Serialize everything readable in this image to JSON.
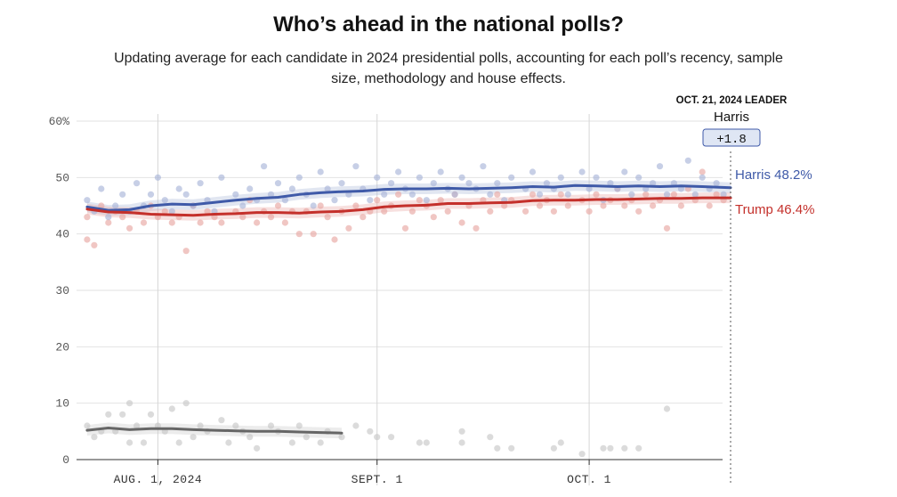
{
  "header": {
    "title": "Who’s ahead in the national polls?",
    "subtitle": "Updating average for each candidate in 2024 presidential polls, accounting for each poll’s recency, sample size, methodology and house effects."
  },
  "leader": {
    "caption": "OCT. 21, 2024 LEADER",
    "name": "Harris",
    "margin": "+1.8"
  },
  "end_labels": {
    "harris": "Harris 48.2%",
    "trump": "Trump 46.4%"
  },
  "colors": {
    "harris": "#3f5aa8",
    "trump": "#c4302b",
    "other": "#666666",
    "harris_dot": "#a9b6d8",
    "trump_dot": "#e8a7a3",
    "other_dot": "#c8c8c8",
    "leader_box": "#dfe6f4"
  },
  "chart_data": {
    "type": "line",
    "title": "",
    "xlabel": "",
    "ylabel": "",
    "ylim": [
      0,
      60
    ],
    "yticks": [
      0,
      10,
      20,
      30,
      40,
      50,
      60
    ],
    "ytick_labels": [
      "0",
      "10",
      "20",
      "30",
      "40",
      "50",
      "60%"
    ],
    "xlim": [
      "2024-07-21",
      "2024-10-21"
    ],
    "xticks": [
      {
        "date": "2024-08-01",
        "label": "AUG. 1, 2024"
      },
      {
        "date": "2024-09-01",
        "label": "SEPT. 1"
      },
      {
        "date": "2024-10-01",
        "label": "OCT. 1"
      }
    ],
    "grid": "vertical at x ticks, horizontal at y ticks",
    "series": [
      {
        "name": "Harris",
        "key": "harris",
        "x": [
          "2024-07-22",
          "2024-07-25",
          "2024-07-28",
          "2024-07-31",
          "2024-08-03",
          "2024-08-06",
          "2024-08-09",
          "2024-08-12",
          "2024-08-15",
          "2024-08-18",
          "2024-08-21",
          "2024-08-24",
          "2024-08-27",
          "2024-08-30",
          "2024-09-02",
          "2024-09-05",
          "2024-09-08",
          "2024-09-11",
          "2024-09-14",
          "2024-09-17",
          "2024-09-20",
          "2024-09-23",
          "2024-09-26",
          "2024-09-29",
          "2024-10-02",
          "2024-10-05",
          "2024-10-08",
          "2024-10-11",
          "2024-10-14",
          "2024-10-17",
          "2024-10-21"
        ],
        "values": [
          44.8,
          44.2,
          44.3,
          45.0,
          45.3,
          45.2,
          45.6,
          46.0,
          46.3,
          46.5,
          47.0,
          47.3,
          47.5,
          47.6,
          47.9,
          48.0,
          48.0,
          48.1,
          48.0,
          48.1,
          48.2,
          48.4,
          48.3,
          48.6,
          48.5,
          48.4,
          48.5,
          48.4,
          48.5,
          48.4,
          48.2
        ]
      },
      {
        "name": "Trump",
        "key": "trump",
        "x": [
          "2024-07-22",
          "2024-07-25",
          "2024-07-28",
          "2024-07-31",
          "2024-08-03",
          "2024-08-06",
          "2024-08-09",
          "2024-08-12",
          "2024-08-15",
          "2024-08-18",
          "2024-08-21",
          "2024-08-24",
          "2024-08-27",
          "2024-08-30",
          "2024-09-02",
          "2024-09-05",
          "2024-09-08",
          "2024-09-11",
          "2024-09-14",
          "2024-09-17",
          "2024-09-20",
          "2024-09-23",
          "2024-09-26",
          "2024-09-29",
          "2024-10-02",
          "2024-10-05",
          "2024-10-08",
          "2024-10-11",
          "2024-10-14",
          "2024-10-17",
          "2024-10-21"
        ],
        "values": [
          44.4,
          43.9,
          43.8,
          43.5,
          43.4,
          43.3,
          43.5,
          43.6,
          43.8,
          43.8,
          43.7,
          43.9,
          44.0,
          44.3,
          44.8,
          45.0,
          45.1,
          45.4,
          45.4,
          45.5,
          45.6,
          45.9,
          46.0,
          46.0,
          46.1,
          46.1,
          46.2,
          46.3,
          46.3,
          46.4,
          46.4
        ]
      },
      {
        "name": "",
        "key": "other",
        "x": [
          "2024-07-22",
          "2024-07-25",
          "2024-07-28",
          "2024-07-31",
          "2024-08-03",
          "2024-08-06",
          "2024-08-09",
          "2024-08-12",
          "2024-08-15",
          "2024-08-18",
          "2024-08-21",
          "2024-08-24",
          "2024-08-27"
        ],
        "values": [
          5.2,
          5.6,
          5.3,
          5.5,
          5.5,
          5.3,
          5.2,
          5.1,
          5.0,
          5.0,
          4.9,
          4.8,
          4.7
        ]
      }
    ],
    "polls": {
      "harris": [
        [
          "2024-07-22",
          46
        ],
        [
          "2024-07-23",
          44
        ],
        [
          "2024-07-24",
          48
        ],
        [
          "2024-07-25",
          43
        ],
        [
          "2024-07-26",
          45
        ],
        [
          "2024-07-27",
          47
        ],
        [
          "2024-07-28",
          44
        ],
        [
          "2024-07-29",
          49
        ],
        [
          "2024-07-30",
          45
        ],
        [
          "2024-07-31",
          47
        ],
        [
          "2024-08-01",
          50
        ],
        [
          "2024-08-02",
          46
        ],
        [
          "2024-08-03",
          44
        ],
        [
          "2024-08-04",
          48
        ],
        [
          "2024-08-05",
          47
        ],
        [
          "2024-08-06",
          45
        ],
        [
          "2024-08-07",
          49
        ],
        [
          "2024-08-08",
          46
        ],
        [
          "2024-08-09",
          44
        ],
        [
          "2024-08-10",
          50
        ],
        [
          "2024-08-12",
          47
        ],
        [
          "2024-08-13",
          45
        ],
        [
          "2024-08-14",
          48
        ],
        [
          "2024-08-15",
          46
        ],
        [
          "2024-08-16",
          52
        ],
        [
          "2024-08-17",
          47
        ],
        [
          "2024-08-18",
          49
        ],
        [
          "2024-08-19",
          46
        ],
        [
          "2024-08-20",
          48
        ],
        [
          "2024-08-21",
          50
        ],
        [
          "2024-08-22",
          47
        ],
        [
          "2024-08-23",
          45
        ],
        [
          "2024-08-24",
          51
        ],
        [
          "2024-08-25",
          48
        ],
        [
          "2024-08-26",
          46
        ],
        [
          "2024-08-27",
          49
        ],
        [
          "2024-08-28",
          47
        ],
        [
          "2024-08-29",
          52
        ],
        [
          "2024-08-30",
          48
        ],
        [
          "2024-08-31",
          46
        ],
        [
          "2024-09-01",
          50
        ],
        [
          "2024-09-02",
          47
        ],
        [
          "2024-09-03",
          49
        ],
        [
          "2024-09-04",
          51
        ],
        [
          "2024-09-05",
          48
        ],
        [
          "2024-09-06",
          47
        ],
        [
          "2024-09-07",
          50
        ],
        [
          "2024-09-08",
          46
        ],
        [
          "2024-09-09",
          49
        ],
        [
          "2024-09-10",
          51
        ],
        [
          "2024-09-11",
          48
        ],
        [
          "2024-09-12",
          47
        ],
        [
          "2024-09-13",
          50
        ],
        [
          "2024-09-14",
          49
        ],
        [
          "2024-09-15",
          48
        ],
        [
          "2024-09-16",
          52
        ],
        [
          "2024-09-17",
          47
        ],
        [
          "2024-09-18",
          49
        ],
        [
          "2024-09-19",
          46
        ],
        [
          "2024-09-20",
          50
        ],
        [
          "2024-09-22",
          48
        ],
        [
          "2024-09-23",
          51
        ],
        [
          "2024-09-24",
          47
        ],
        [
          "2024-09-25",
          49
        ],
        [
          "2024-09-26",
          48
        ],
        [
          "2024-09-27",
          50
        ],
        [
          "2024-09-28",
          47
        ],
        [
          "2024-09-30",
          51
        ],
        [
          "2024-10-01",
          48
        ],
        [
          "2024-10-02",
          50
        ],
        [
          "2024-10-03",
          46
        ],
        [
          "2024-10-04",
          49
        ],
        [
          "2024-10-05",
          48
        ],
        [
          "2024-10-06",
          51
        ],
        [
          "2024-10-07",
          47
        ],
        [
          "2024-10-08",
          50
        ],
        [
          "2024-10-09",
          48
        ],
        [
          "2024-10-10",
          49
        ],
        [
          "2024-10-11",
          52
        ],
        [
          "2024-10-12",
          47
        ],
        [
          "2024-10-13",
          49
        ],
        [
          "2024-10-14",
          48
        ],
        [
          "2024-10-15",
          53
        ],
        [
          "2024-10-16",
          47
        ],
        [
          "2024-10-17",
          50
        ],
        [
          "2024-10-18",
          48
        ],
        [
          "2024-10-19",
          49
        ],
        [
          "2024-10-20",
          47
        ]
      ],
      "trump": [
        [
          "2024-07-22",
          43
        ],
        [
          "2024-07-22",
          39
        ],
        [
          "2024-07-23",
          38
        ],
        [
          "2024-07-24",
          45
        ],
        [
          "2024-07-25",
          42
        ],
        [
          "2024-07-26",
          44
        ],
        [
          "2024-07-27",
          43
        ],
        [
          "2024-07-28",
          41
        ],
        [
          "2024-07-29",
          44
        ],
        [
          "2024-07-30",
          42
        ],
        [
          "2024-07-31",
          45
        ],
        [
          "2024-08-01",
          43
        ],
        [
          "2024-08-02",
          44
        ],
        [
          "2024-08-03",
          42
        ],
        [
          "2024-08-04",
          43
        ],
        [
          "2024-08-05",
          37
        ],
        [
          "2024-08-06",
          45
        ],
        [
          "2024-08-07",
          42
        ],
        [
          "2024-08-08",
          44
        ],
        [
          "2024-08-09",
          43
        ],
        [
          "2024-08-10",
          42
        ],
        [
          "2024-08-12",
          44
        ],
        [
          "2024-08-13",
          43
        ],
        [
          "2024-08-14",
          46
        ],
        [
          "2024-08-15",
          42
        ],
        [
          "2024-08-16",
          44
        ],
        [
          "2024-08-17",
          43
        ],
        [
          "2024-08-18",
          45
        ],
        [
          "2024-08-19",
          42
        ],
        [
          "2024-08-20",
          44
        ],
        [
          "2024-08-21",
          40
        ],
        [
          "2024-08-22",
          44
        ],
        [
          "2024-08-23",
          40
        ],
        [
          "2024-08-24",
          45
        ],
        [
          "2024-08-25",
          43
        ],
        [
          "2024-08-26",
          39
        ],
        [
          "2024-08-27",
          44
        ],
        [
          "2024-08-28",
          41
        ],
        [
          "2024-08-29",
          45
        ],
        [
          "2024-08-30",
          43
        ],
        [
          "2024-08-31",
          44
        ],
        [
          "2024-09-01",
          46
        ],
        [
          "2024-09-02",
          44
        ],
        [
          "2024-09-03",
          45
        ],
        [
          "2024-09-04",
          47
        ],
        [
          "2024-09-05",
          41
        ],
        [
          "2024-09-06",
          44
        ],
        [
          "2024-09-07",
          46
        ],
        [
          "2024-09-08",
          45
        ],
        [
          "2024-09-09",
          43
        ],
        [
          "2024-09-10",
          46
        ],
        [
          "2024-09-11",
          44
        ],
        [
          "2024-09-12",
          47
        ],
        [
          "2024-09-13",
          42
        ],
        [
          "2024-09-14",
          45
        ],
        [
          "2024-09-15",
          41
        ],
        [
          "2024-09-16",
          46
        ],
        [
          "2024-09-17",
          44
        ],
        [
          "2024-09-18",
          47
        ],
        [
          "2024-09-19",
          45
        ],
        [
          "2024-09-20",
          46
        ],
        [
          "2024-09-22",
          44
        ],
        [
          "2024-09-23",
          47
        ],
        [
          "2024-09-24",
          45
        ],
        [
          "2024-09-25",
          46
        ],
        [
          "2024-09-26",
          44
        ],
        [
          "2024-09-27",
          47
        ],
        [
          "2024-09-28",
          45
        ],
        [
          "2024-09-30",
          46
        ],
        [
          "2024-10-01",
          44
        ],
        [
          "2024-10-02",
          47
        ],
        [
          "2024-10-03",
          45
        ],
        [
          "2024-10-04",
          46
        ],
        [
          "2024-10-05",
          48
        ],
        [
          "2024-10-06",
          45
        ],
        [
          "2024-10-07",
          46
        ],
        [
          "2024-10-08",
          44
        ],
        [
          "2024-10-09",
          47
        ],
        [
          "2024-10-10",
          45
        ],
        [
          "2024-10-11",
          46
        ],
        [
          "2024-10-12",
          41
        ],
        [
          "2024-10-13",
          47
        ],
        [
          "2024-10-14",
          45
        ],
        [
          "2024-10-15",
          48
        ],
        [
          "2024-10-16",
          46
        ],
        [
          "2024-10-17",
          51
        ],
        [
          "2024-10-18",
          45
        ],
        [
          "2024-10-19",
          47
        ],
        [
          "2024-10-20",
          46
        ]
      ],
      "other": [
        [
          "2024-07-22",
          6
        ],
        [
          "2024-07-23",
          4
        ],
        [
          "2024-07-24",
          5
        ],
        [
          "2024-07-25",
          8
        ],
        [
          "2024-07-26",
          5
        ],
        [
          "2024-07-27",
          8
        ],
        [
          "2024-07-28",
          10
        ],
        [
          "2024-07-28",
          3
        ],
        [
          "2024-07-29",
          6
        ],
        [
          "2024-07-30",
          3
        ],
        [
          "2024-07-31",
          8
        ],
        [
          "2024-08-01",
          6
        ],
        [
          "2024-08-02",
          5
        ],
        [
          "2024-08-03",
          9
        ],
        [
          "2024-08-04",
          3
        ],
        [
          "2024-08-05",
          10
        ],
        [
          "2024-08-06",
          4
        ],
        [
          "2024-08-07",
          6
        ],
        [
          "2024-08-08",
          5
        ],
        [
          "2024-08-10",
          7
        ],
        [
          "2024-08-11",
          3
        ],
        [
          "2024-08-12",
          6
        ],
        [
          "2024-08-13",
          5
        ],
        [
          "2024-08-14",
          4
        ],
        [
          "2024-08-15",
          2
        ],
        [
          "2024-08-17",
          6
        ],
        [
          "2024-08-18",
          5
        ],
        [
          "2024-08-20",
          3
        ],
        [
          "2024-08-21",
          6
        ],
        [
          "2024-08-22",
          4
        ],
        [
          "2024-08-24",
          3
        ],
        [
          "2024-08-25",
          5
        ],
        [
          "2024-08-27",
          4
        ],
        [
          "2024-08-29",
          6
        ],
        [
          "2024-08-31",
          5
        ],
        [
          "2024-09-01",
          4
        ],
        [
          "2024-09-03",
          4
        ],
        [
          "2024-09-07",
          3
        ],
        [
          "2024-09-08",
          3
        ],
        [
          "2024-09-13",
          3
        ],
        [
          "2024-09-13",
          5
        ],
        [
          "2024-09-17",
          4
        ],
        [
          "2024-09-18",
          2
        ],
        [
          "2024-09-20",
          2
        ],
        [
          "2024-09-26",
          2
        ],
        [
          "2024-09-27",
          3
        ],
        [
          "2024-09-30",
          1
        ],
        [
          "2024-10-03",
          2
        ],
        [
          "2024-10-04",
          2
        ],
        [
          "2024-10-06",
          2
        ],
        [
          "2024-10-08",
          2
        ],
        [
          "2024-10-12",
          9
        ]
      ]
    }
  }
}
